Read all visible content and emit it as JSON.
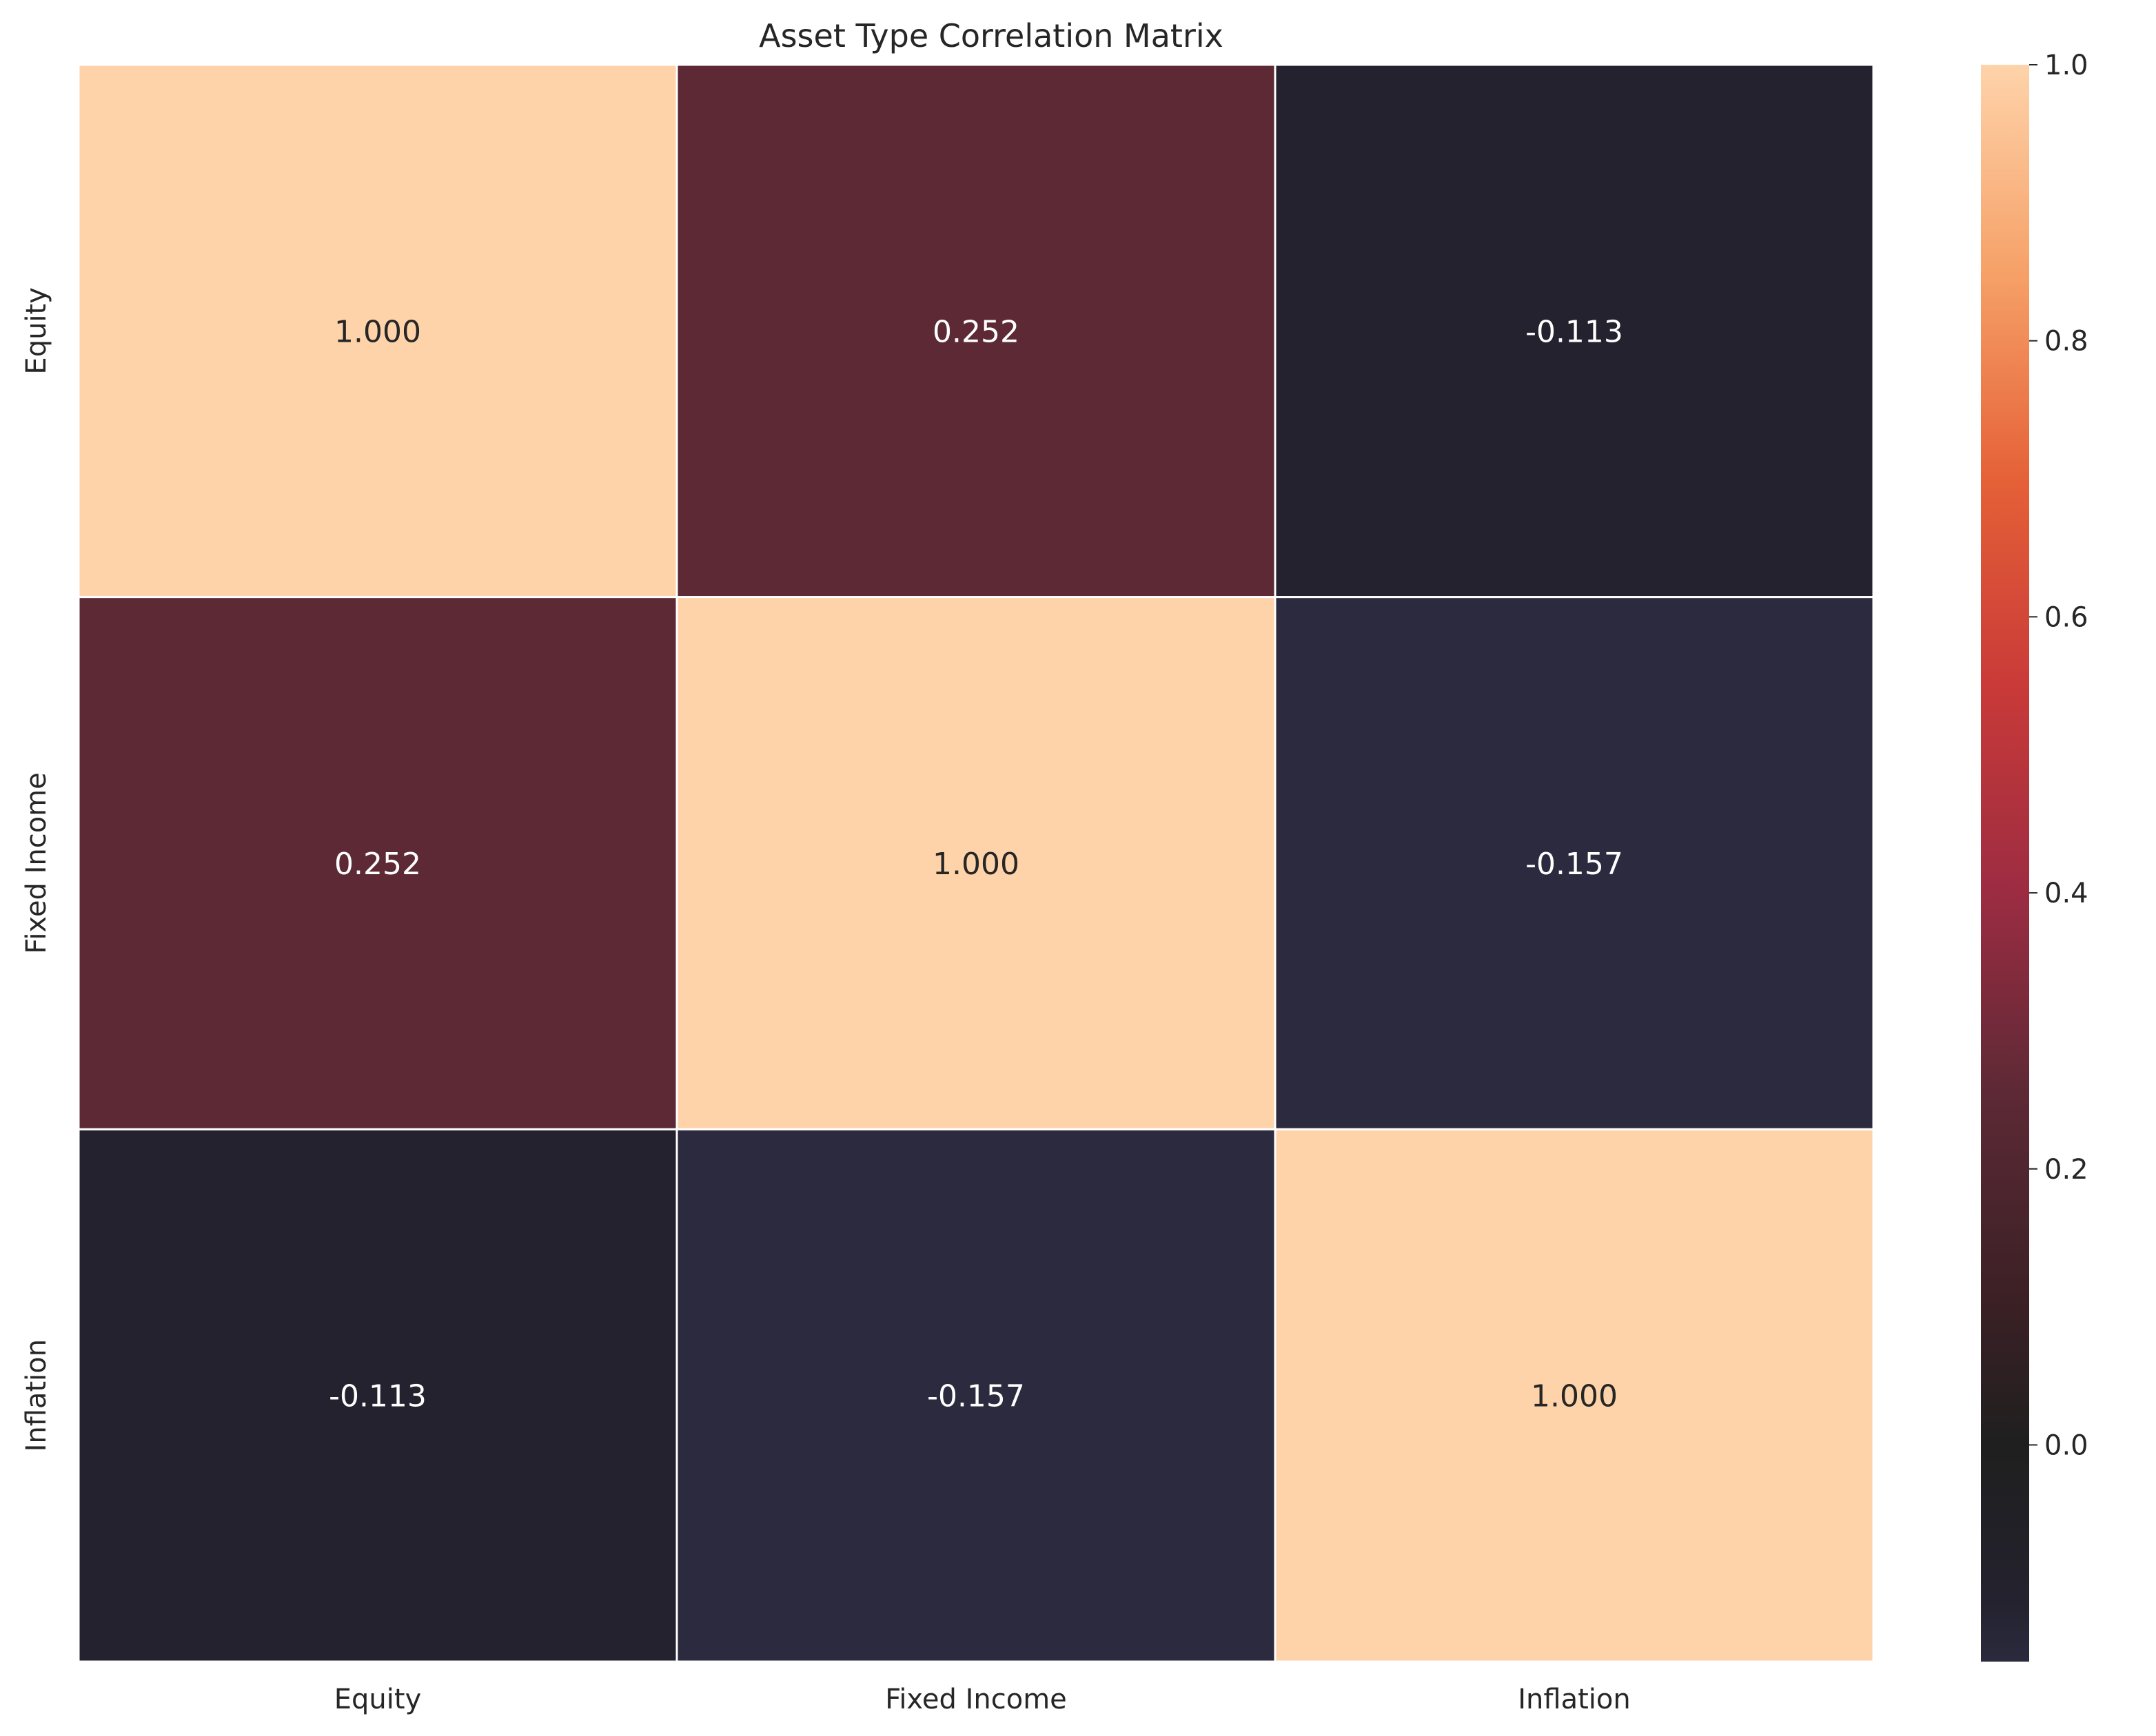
{
  "chart_data": {
    "type": "heatmap",
    "title": "Asset Type Correlation Matrix",
    "xlabel": "",
    "ylabel": "",
    "x_categories": [
      "Equity",
      "Fixed Income",
      "Inflation"
    ],
    "y_categories": [
      "Equity",
      "Fixed Income",
      "Inflation"
    ],
    "values": [
      [
        1.0,
        0.252,
        -0.113
      ],
      [
        0.252,
        1.0,
        -0.157
      ],
      [
        -0.113,
        -0.157,
        1.0
      ]
    ],
    "value_labels": [
      [
        "1.000",
        "0.252",
        "-0.113"
      ],
      [
        "0.252",
        "1.000",
        "-0.157"
      ],
      [
        "-0.113",
        "-0.157",
        "1.000"
      ]
    ],
    "colorbar": {
      "vmin": -0.157,
      "vmax": 1.0,
      "ticks": [
        0.0,
        0.2,
        0.4,
        0.6,
        0.8,
        1.0
      ],
      "tick_labels": [
        "0.0",
        "0.2",
        "0.4",
        "0.6",
        "0.8",
        "1.0"
      ]
    },
    "colormap": [
      {
        "v": -0.157,
        "color": "#2b2a3e"
      },
      {
        "v": -0.113,
        "color": "#24222e"
      },
      {
        "v": 0.0,
        "color": "#1f1f1f"
      },
      {
        "v": 0.1,
        "color": "#3a2025"
      },
      {
        "v": 0.252,
        "color": "#5c2935"
      },
      {
        "v": 0.4,
        "color": "#9c2c42"
      },
      {
        "v": 0.55,
        "color": "#c93a38"
      },
      {
        "v": 0.7,
        "color": "#e56137"
      },
      {
        "v": 0.85,
        "color": "#f6a168"
      },
      {
        "v": 1.0,
        "color": "#fed3aa"
      }
    ],
    "grid": false,
    "legend": "colorbar-right",
    "cell_border_color": "#ffffff",
    "label_colors": {
      "light": "#ffffff",
      "dark": "#262626"
    }
  }
}
